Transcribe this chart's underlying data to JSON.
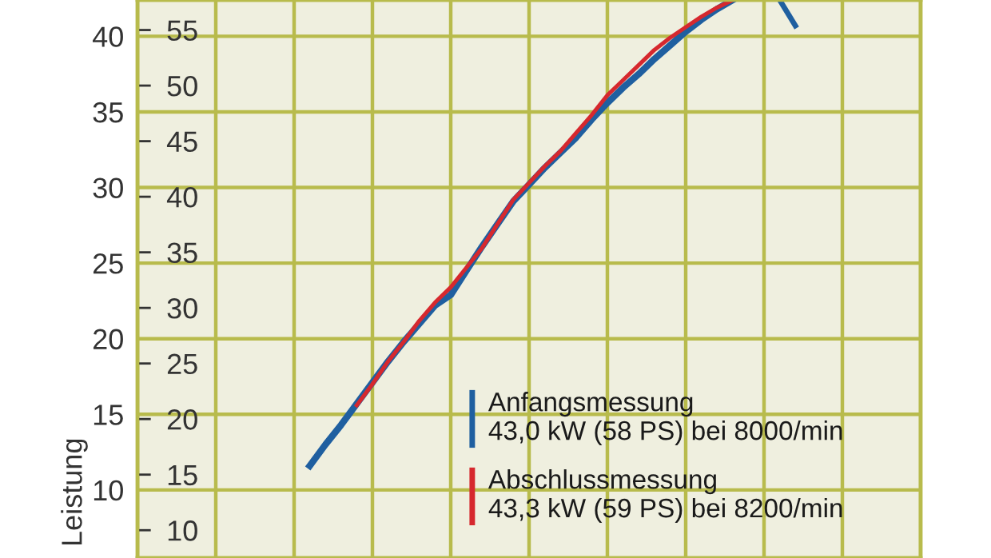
{
  "chart_data": {
    "type": "line",
    "ylabel": "Leistung",
    "categories": [
      null,
      null,
      null,
      null,
      null,
      null,
      null,
      null,
      null,
      null,
      null,
      null,
      null,
      null,
      null,
      null,
      null,
      null,
      null,
      null,
      null,
      null,
      null,
      null,
      null,
      null,
      null,
      null,
      null,
      null,
      null,
      null,
      null,
      null,
      null,
      null,
      null,
      null,
      null,
      null,
      null,
      null,
      null,
      null,
      null,
      null,
      null,
      null,
      null,
      null,
      null
    ],
    "ylim": [
      5.5,
      42.4
    ],
    "yticks": [
      10,
      15,
      20,
      25,
      30,
      35,
      40
    ],
    "y2lim": [
      7.5,
      57.7
    ],
    "y2ticks": [
      10,
      15,
      20,
      25,
      30,
      35,
      40,
      45,
      50,
      55
    ],
    "grid": true,
    "legend": "bottom",
    "marker": "none",
    "line_style": "solid",
    "series": [
      {
        "name": "Anfangsmessung\n43,0 kW (58 PS) bei 8000/min",
        "color": "#1f5fa0",
        "values": [
          null,
          null,
          null,
          null,
          null,
          null,
          null,
          null,
          null,
          null,
          null,
          11.6,
          13.0,
          14.3,
          15.7,
          17.1,
          18.5,
          19.8,
          21.0,
          22.2,
          22.9,
          24.5,
          26.1,
          27.6,
          29.1,
          30.2,
          31.3,
          32.3,
          33.3,
          34.5,
          35.6,
          36.6,
          37.5,
          38.5,
          39.4,
          40.3,
          41.1,
          41.8,
          42.4,
          null,
          null,
          null,
          null,
          null,
          null,
          null,
          null,
          null,
          null,
          null,
          null
        ]
      },
      {
        "color": "#1f5fa0",
        "values": [
          null,
          null,
          null,
          null,
          null,
          null,
          null,
          null,
          null,
          null,
          null,
          null,
          null,
          null,
          null,
          null,
          null,
          null,
          null,
          null,
          null,
          null,
          null,
          null,
          null,
          null,
          null,
          null,
          null,
          null,
          null,
          null,
          null,
          null,
          null,
          null,
          null,
          null,
          null,
          null,
          null,
          42.4,
          40.7,
          null,
          null,
          null,
          null,
          null,
          null,
          null,
          null
        ]
      },
      {
        "name": "Abschlussmessung\n43,3 kW (59 PS) bei 8200/min",
        "color": "#d6282e",
        "values": [
          null,
          null,
          null,
          null,
          null,
          null,
          null,
          null,
          null,
          null,
          null,
          null,
          null,
          null,
          15.6,
          17.0,
          18.5,
          19.8,
          21.2,
          22.4,
          23.4,
          24.7,
          26.0,
          27.6,
          29.2,
          30.3,
          31.4,
          32.4,
          33.6,
          34.8,
          36.1,
          37.1,
          38.1,
          39.1,
          39.9,
          40.6,
          41.3,
          41.9,
          42.4,
          null,
          null,
          null,
          null,
          null,
          null,
          null,
          null,
          null,
          null,
          null,
          null
        ]
      }
    ]
  }
}
